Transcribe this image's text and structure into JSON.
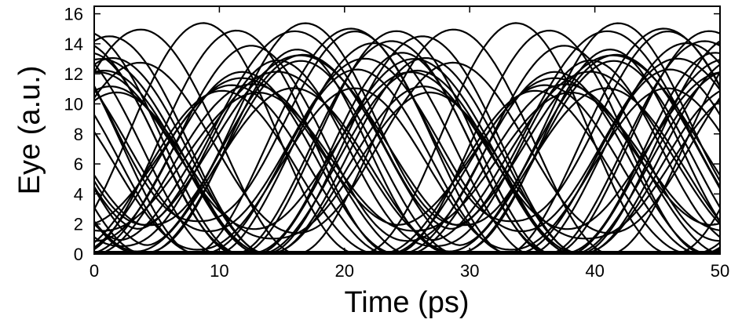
{
  "chart_data": {
    "type": "line",
    "title": "",
    "xlabel": "Time (ps)",
    "ylabel": "Eye (a.u.)",
    "xlim": [
      0,
      50
    ],
    "ylim": [
      0,
      16.5
    ],
    "xticks": [
      0,
      10,
      20,
      30,
      40,
      50
    ],
    "yticks": [
      0,
      2,
      4,
      6,
      8,
      10,
      12,
      14,
      16
    ],
    "grid": false,
    "legend": "none",
    "line_color": "#000000",
    "bit_period_ps": 25,
    "eye_center_ps": [
      12.5,
      37.5
    ],
    "trace_count": 36,
    "trace_shape": "raised-cosine bit transitions with timing jitter",
    "trace_peak_range": [
      10.5,
      15.4
    ],
    "trace_floor_range": [
      0,
      2.2
    ]
  }
}
